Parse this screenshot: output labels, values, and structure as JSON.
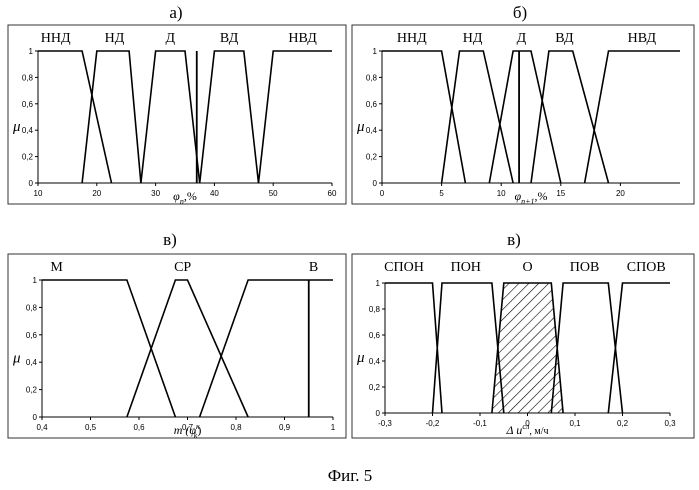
{
  "figure_caption": "Фиг. 5",
  "colors": {
    "ink": "#000000",
    "frame": "#333333",
    "background": "#ffffff"
  },
  "chart_data": [
    {
      "panel_letter": "а)",
      "type": "line",
      "ylabel": "μ",
      "xlabel_main": "φ",
      "xlabel_sub": "n",
      "xlabel_sup": "",
      "xlabel_unit": ",%",
      "xlim": [
        10,
        60
      ],
      "ylim": [
        0,
        1
      ],
      "xticks": [
        "10",
        "20",
        "30",
        "40",
        "50",
        "60"
      ],
      "yticks": [
        "0",
        "0,2",
        "0,4",
        "0,6",
        "0,8",
        "1"
      ],
      "marker_x": 37,
      "series": [
        {
          "name": "ННД",
          "x": [
            10,
            17.5,
            22.5
          ],
          "y": [
            1,
            1,
            0
          ]
        },
        {
          "name": "НД",
          "x": [
            17.5,
            20,
            25.5,
            27.5
          ],
          "y": [
            0,
            1,
            1,
            0
          ]
        },
        {
          "name": "Д",
          "x": [
            27.5,
            30,
            35,
            37.5
          ],
          "y": [
            0,
            1,
            1,
            0
          ]
        },
        {
          "name": "ВД",
          "x": [
            37.5,
            40,
            45,
            47.5
          ],
          "y": [
            0,
            1,
            1,
            0
          ]
        },
        {
          "name": "НВД",
          "x": [
            47.5,
            50,
            60
          ],
          "y": [
            0,
            1,
            1
          ]
        }
      ],
      "label_x": [
        13,
        23,
        32.5,
        42.5,
        55
      ]
    },
    {
      "panel_letter": "б)",
      "type": "line",
      "ylabel": "μ",
      "xlabel_main": "φ",
      "xlabel_sub": "n+1",
      "xlabel_sup": "",
      "xlabel_unit": ",%",
      "xlim": [
        0,
        25
      ],
      "ylim": [
        0,
        1
      ],
      "xticks": [
        "0",
        "5",
        "10",
        "15",
        "20"
      ],
      "yticks": [
        "0",
        "0,2",
        "0,4",
        "0,6",
        "0,8",
        "1"
      ],
      "marker_x": 11.5,
      "series": [
        {
          "name": "ННД",
          "x": [
            0,
            5,
            7
          ],
          "y": [
            1,
            1,
            0
          ]
        },
        {
          "name": "НД",
          "x": [
            5,
            6.5,
            8.5,
            11
          ],
          "y": [
            0,
            1,
            1,
            0
          ]
        },
        {
          "name": "Д",
          "x": [
            9,
            11,
            12.5,
            15
          ],
          "y": [
            0,
            1,
            1,
            0
          ]
        },
        {
          "name": "ВД",
          "x": [
            12.5,
            14,
            16,
            19
          ],
          "y": [
            0,
            1,
            1,
            0
          ]
        },
        {
          "name": "НВД",
          "x": [
            17,
            19,
            25
          ],
          "y": [
            0,
            1,
            1
          ]
        }
      ],
      "label_x": [
        2.5,
        7.6,
        11.7,
        15.3,
        21.8
      ]
    },
    {
      "panel_letter": "в)",
      "type": "line",
      "ylabel": "μ",
      "xlabel_main": "m (φ",
      "xlabel_sub": "k",
      "xlabel_sup": "к",
      "xlabel_unit": ")",
      "xlim": [
        0.4,
        1.0
      ],
      "ylim": [
        0,
        1
      ],
      "xticks": [
        "0,4",
        "0,5",
        "0,6",
        "0,7",
        "0,8",
        "0,9",
        "1"
      ],
      "yticks": [
        "0",
        "0,2",
        "0,4",
        "0,6",
        "0,8",
        "1"
      ],
      "marker_x": 0.95,
      "series": [
        {
          "name": "М",
          "x": [
            0.4,
            0.575,
            0.675
          ],
          "y": [
            1,
            1,
            0
          ]
        },
        {
          "name": "СР",
          "x": [
            0.575,
            0.675,
            0.7,
            0.825
          ],
          "y": [
            0,
            1,
            1,
            0
          ]
        },
        {
          "name": "В",
          "x": [
            0.725,
            0.825,
            1.0
          ],
          "y": [
            0,
            1,
            1
          ]
        }
      ],
      "label_x": [
        0.43,
        0.69,
        0.96
      ]
    },
    {
      "panel_letter": "в)",
      "type": "area",
      "ylabel": "μ",
      "xlabel_main": "Δ u",
      "xlabel_sub": "",
      "xlabel_sup": "сл",
      "xlabel_unit": ", м/ч",
      "xlim": [
        -0.3,
        0.3
      ],
      "ylim": [
        0,
        1
      ],
      "xticks": [
        "-0,3",
        "-0,2",
        "-0,1",
        "0",
        "0,1",
        "0,2",
        "0,3"
      ],
      "yticks": [
        "0",
        "0,2",
        "0,4",
        "0,6",
        "0,8",
        "1"
      ],
      "marker_x": null,
      "series": [
        {
          "name": "СПОН",
          "x": [
            -0.3,
            -0.2,
            -0.18
          ],
          "y": [
            1,
            1,
            0
          ]
        },
        {
          "name": "ПОН",
          "x": [
            -0.2,
            -0.18,
            -0.075,
            -0.05
          ],
          "y": [
            0,
            1,
            1,
            0
          ]
        },
        {
          "name": "О",
          "x": [
            -0.075,
            -0.05,
            0.05,
            0.075
          ],
          "y": [
            0,
            1,
            1,
            0
          ],
          "hatched": true
        },
        {
          "name": "ПОВ",
          "x": [
            0.05,
            0.075,
            0.17,
            0.2
          ],
          "y": [
            0,
            1,
            1,
            0
          ]
        },
        {
          "name": "СПОВ",
          "x": [
            0.17,
            0.2,
            0.3
          ],
          "y": [
            0,
            1,
            1
          ]
        }
      ],
      "label_x": [
        -0.26,
        -0.13,
        0,
        0.12,
        0.25
      ]
    }
  ]
}
